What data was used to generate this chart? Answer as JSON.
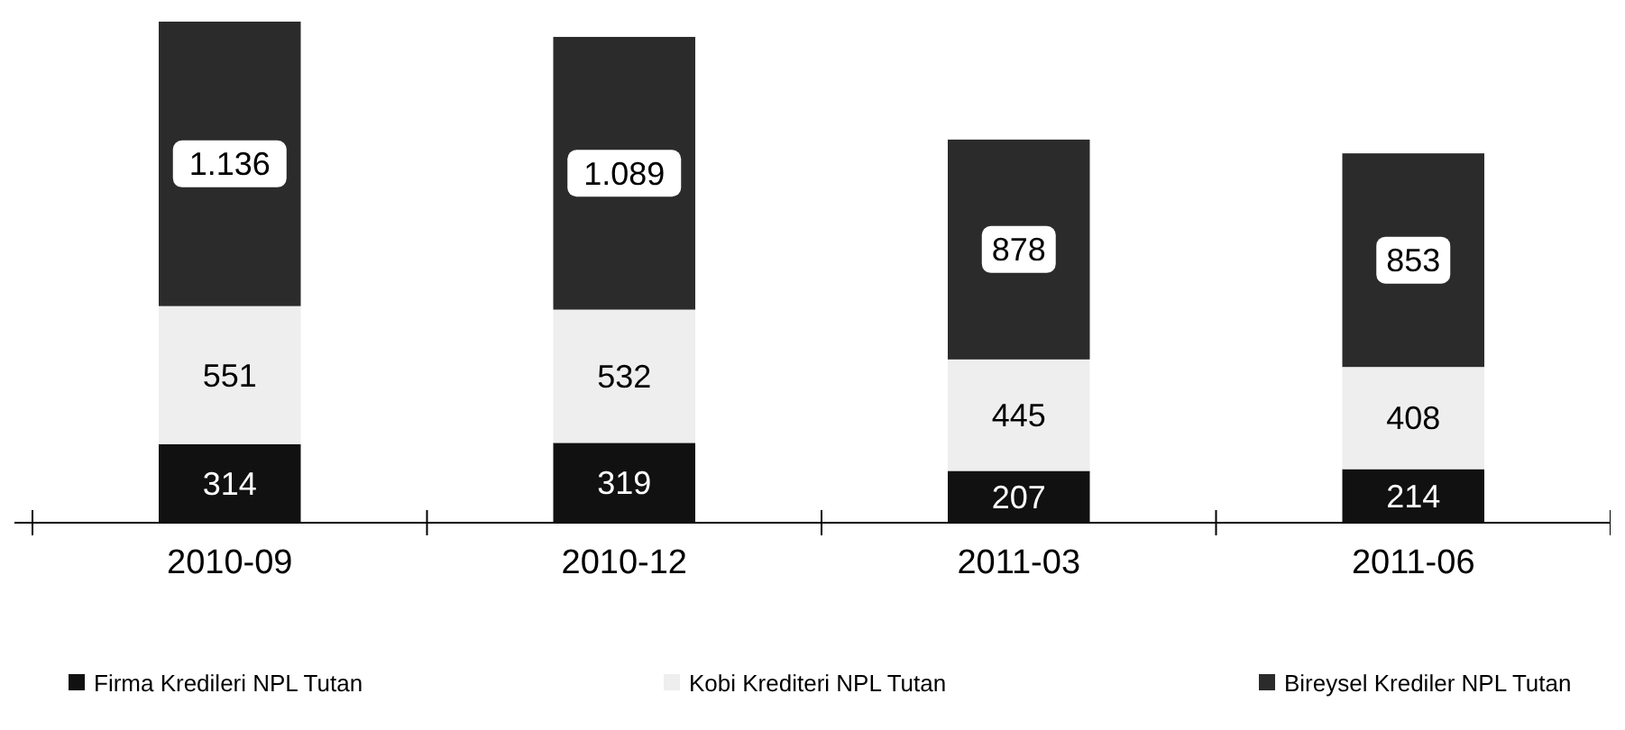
{
  "chart_data": {
    "type": "bar",
    "stacked": true,
    "categories": [
      "2010-09",
      "2010-12",
      "2011-03",
      "2011-06"
    ],
    "legend": "bottom",
    "series": [
      {
        "name": "Firma Kredileri NPL Tutan",
        "color": "#111111",
        "values": [
          314,
          319,
          207,
          214
        ],
        "value_labels": [
          "314",
          "319",
          "207",
          "214"
        ]
      },
      {
        "name": "Kobi Krediteri NPL Tutan",
        "color": "#eeeeee",
        "values": [
          551,
          532,
          445,
          408
        ],
        "value_labels": [
          "551",
          "532",
          "445",
          "408"
        ]
      },
      {
        "name": "Bireysel Krediler NPL Tutan",
        "color": "#2b2b2b",
        "values": [
          1136,
          1089,
          878,
          853
        ],
        "value_labels": [
          "1.136",
          "1.089",
          "878",
          "853"
        ]
      }
    ]
  }
}
